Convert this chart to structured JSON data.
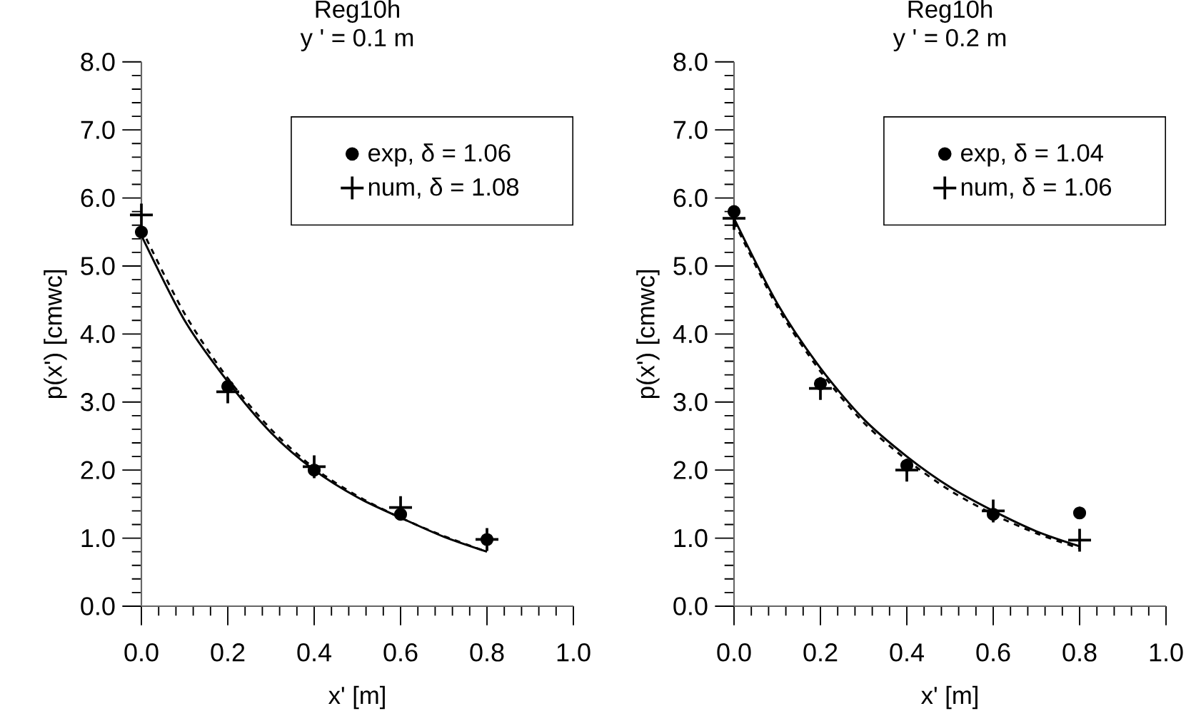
{
  "chart_data": [
    {
      "type": "scatter",
      "title": "Reg10h",
      "subtitle": "y ' = 0.1 m",
      "xlabel": "x'  [m]",
      "ylabel": "p(x')  [cmwc]",
      "x": [
        0,
        0.2,
        0.4,
        0.6,
        0.8
      ],
      "series": [
        {
          "name": "exp, δ = 1.06",
          "color": "#000000",
          "marker": "circle",
          "values": [
            5.5,
            3.23,
            2.0,
            1.35,
            0.98
          ]
        },
        {
          "name": "num, δ = 1.08",
          "color": "#000000",
          "marker": "cross",
          "values": [
            5.75,
            3.15,
            2.05,
            1.45,
            0.98
          ]
        },
        {
          "type": "line",
          "color": "#000000",
          "line_style": "solid",
          "x": [
            0,
            0.1,
            0.2,
            0.3,
            0.4,
            0.5,
            0.6,
            0.7,
            0.8
          ],
          "values": [
            5.45,
            4.2,
            3.3,
            2.55,
            2.0,
            1.6,
            1.3,
            1.02,
            0.8
          ]
        },
        {
          "type": "line",
          "color": "#000000",
          "line_style": "dashed",
          "x": [
            0,
            0.1,
            0.2,
            0.3,
            0.4,
            0.5,
            0.6,
            0.7,
            0.8
          ],
          "values": [
            5.55,
            4.3,
            3.35,
            2.6,
            2.03,
            1.62,
            1.3,
            1.03,
            0.8
          ]
        }
      ],
      "xlim": [
        0,
        1.0
      ],
      "ylim": [
        0,
        8.0
      ],
      "xticks": [
        {
          "value": 0,
          "label": "0.0"
        },
        {
          "value": 0.2,
          "label": "0.2"
        },
        {
          "value": 0.4,
          "label": "0.4"
        },
        {
          "value": 0.6,
          "label": "0.6"
        },
        {
          "value": 0.8,
          "label": "0.8"
        },
        {
          "value": 1.0,
          "label": "1.0"
        }
      ],
      "yticks": [
        {
          "value": 0,
          "label": "0.0"
        },
        {
          "value": 1,
          "label": "1.0"
        },
        {
          "value": 2,
          "label": "2.0"
        },
        {
          "value": 3,
          "label": "3.0"
        },
        {
          "value": 4,
          "label": "4.0"
        },
        {
          "value": 5,
          "label": "5.0"
        },
        {
          "value": 6,
          "label": "6.0"
        },
        {
          "value": 7,
          "label": "7.0"
        },
        {
          "value": 8,
          "label": "8.0"
        }
      ],
      "legend": "top right",
      "grid": false
    },
    {
      "type": "scatter",
      "title": "Reg10h",
      "subtitle": "y ' = 0.2 m",
      "xlabel": "x'  [m]",
      "ylabel": "p(x')  [cmwc]",
      "x": [
        0,
        0.2,
        0.4,
        0.6,
        0.8
      ],
      "series": [
        {
          "name": "exp, δ = 1.04",
          "color": "#000000",
          "marker": "circle",
          "values": [
            5.8,
            3.27,
            2.07,
            1.35,
            1.37
          ]
        },
        {
          "name": "num, δ = 1.06",
          "color": "#000000",
          "marker": "cross",
          "values": [
            5.7,
            3.2,
            2.0,
            1.4,
            0.97
          ]
        },
        {
          "type": "line",
          "color": "#000000",
          "line_style": "solid",
          "x": [
            0,
            0.1,
            0.2,
            0.3,
            0.4,
            0.5,
            0.6,
            0.7,
            0.8
          ],
          "values": [
            5.7,
            4.45,
            3.5,
            2.75,
            2.2,
            1.75,
            1.4,
            1.1,
            0.88
          ]
        },
        {
          "type": "line",
          "color": "#000000",
          "line_style": "dashed",
          "x": [
            0,
            0.1,
            0.2,
            0.3,
            0.4,
            0.5,
            0.6,
            0.7,
            0.8
          ],
          "values": [
            5.65,
            4.4,
            3.45,
            2.7,
            2.15,
            1.7,
            1.35,
            1.07,
            0.85
          ]
        }
      ],
      "xlim": [
        0,
        1.0
      ],
      "ylim": [
        0,
        8.0
      ],
      "xticks": [
        {
          "value": 0,
          "label": "0.0"
        },
        {
          "value": 0.2,
          "label": "0.2"
        },
        {
          "value": 0.4,
          "label": "0.4"
        },
        {
          "value": 0.6,
          "label": "0.6"
        },
        {
          "value": 0.8,
          "label": "0.8"
        },
        {
          "value": 1.0,
          "label": "1.0"
        }
      ],
      "yticks": [
        {
          "value": 0,
          "label": "0.0"
        },
        {
          "value": 1,
          "label": "1.0"
        },
        {
          "value": 2,
          "label": "2.0"
        },
        {
          "value": 3,
          "label": "3.0"
        },
        {
          "value": 4,
          "label": "4.0"
        },
        {
          "value": 5,
          "label": "5.0"
        },
        {
          "value": 6,
          "label": "6.0"
        },
        {
          "value": 7,
          "label": "7.0"
        },
        {
          "value": 8,
          "label": "8.0"
        }
      ],
      "legend": "top right",
      "grid": false
    }
  ]
}
